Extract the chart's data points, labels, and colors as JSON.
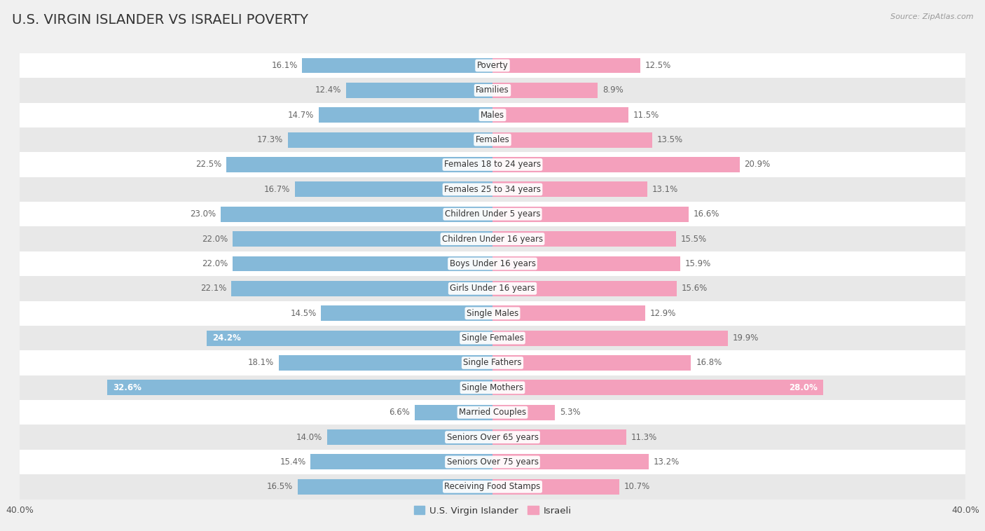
{
  "title": "U.S. VIRGIN ISLANDER VS ISRAELI POVERTY",
  "source": "Source: ZipAtlas.com",
  "categories": [
    "Poverty",
    "Families",
    "Males",
    "Females",
    "Females 18 to 24 years",
    "Females 25 to 34 years",
    "Children Under 5 years",
    "Children Under 16 years",
    "Boys Under 16 years",
    "Girls Under 16 years",
    "Single Males",
    "Single Females",
    "Single Fathers",
    "Single Mothers",
    "Married Couples",
    "Seniors Over 65 years",
    "Seniors Over 75 years",
    "Receiving Food Stamps"
  ],
  "virgin_islander": [
    16.1,
    12.4,
    14.7,
    17.3,
    22.5,
    16.7,
    23.0,
    22.0,
    22.0,
    22.1,
    14.5,
    24.2,
    18.1,
    32.6,
    6.6,
    14.0,
    15.4,
    16.5
  ],
  "israeli": [
    12.5,
    8.9,
    11.5,
    13.5,
    20.9,
    13.1,
    16.6,
    15.5,
    15.9,
    15.6,
    12.9,
    19.9,
    16.8,
    28.0,
    5.3,
    11.3,
    13.2,
    10.7
  ],
  "vi_color": "#85b9d9",
  "il_color": "#f4a0bc",
  "vi_label_color_default": "#666666",
  "vi_label_color_highlight": "#ffffff",
  "il_label_color_default": "#666666",
  "il_label_color_highlight": "#ffffff",
  "highlight_vi": [
    11,
    13
  ],
  "highlight_il": [
    13
  ],
  "xlim": 40.0,
  "bg_color": "#f0f0f0",
  "row_bg_white": "#ffffff",
  "row_bg_gray": "#e8e8e8",
  "legend_vi_label": "U.S. Virgin Islander",
  "legend_il_label": "Israeli",
  "tick_labels_left": [
    "40.0%",
    "",
    "",
    "",
    ""
  ],
  "tick_labels_right": [
    "",
    "",
    "",
    "",
    "40.0%"
  ],
  "title_color": "#333333",
  "source_color": "#999999"
}
